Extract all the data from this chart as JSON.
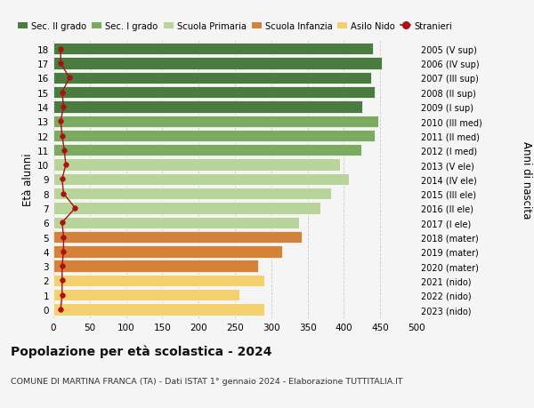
{
  "ages": [
    18,
    17,
    16,
    15,
    14,
    13,
    12,
    11,
    10,
    9,
    8,
    7,
    6,
    5,
    4,
    3,
    2,
    1,
    0
  ],
  "right_labels": [
    "2005 (V sup)",
    "2006 (IV sup)",
    "2007 (III sup)",
    "2008 (II sup)",
    "2009 (I sup)",
    "2010 (III med)",
    "2011 (II med)",
    "2012 (I med)",
    "2013 (V ele)",
    "2014 (IV ele)",
    "2015 (III ele)",
    "2016 (II ele)",
    "2017 (I ele)",
    "2018 (mater)",
    "2019 (mater)",
    "2020 (mater)",
    "2021 (nido)",
    "2022 (nido)",
    "2023 (nido)"
  ],
  "bar_values": [
    440,
    452,
    438,
    443,
    425,
    447,
    443,
    424,
    394,
    407,
    382,
    368,
    338,
    342,
    315,
    282,
    290,
    256,
    290
  ],
  "stranieri_values": [
    10,
    10,
    22,
    12,
    14,
    10,
    12,
    15,
    17,
    12,
    14,
    30,
    12,
    14,
    14,
    12,
    12,
    12,
    10
  ],
  "bar_colors": [
    "#4a7c3f",
    "#4a7c3f",
    "#4a7c3f",
    "#4a7c3f",
    "#4a7c3f",
    "#7aab5e",
    "#7aab5e",
    "#7aab5e",
    "#b8d49a",
    "#b8d49a",
    "#b8d49a",
    "#b8d49a",
    "#b8d49a",
    "#d4813a",
    "#d4813a",
    "#d4813a",
    "#f5d06e",
    "#f5d06e",
    "#f5d06e"
  ],
  "legend_colors": {
    "Sec. II grado": "#4a7c3f",
    "Sec. I grado": "#7aab5e",
    "Scuola Primaria": "#b8d49a",
    "Scuola Infanzia": "#d4813a",
    "Asilo Nido": "#f5d06e",
    "Stranieri": "#aa1111"
  },
  "title": "Popolazione per età scolastica - 2024",
  "subtitle": "COMUNE DI MARTINA FRANCA (TA) - Dati ISTAT 1° gennaio 2024 - Elaborazione TUTTITALIA.IT",
  "ylabel": "Età alunni",
  "right_ylabel": "Anni di nascita",
  "xlim": [
    0,
    500
  ],
  "xticks": [
    0,
    50,
    100,
    150,
    200,
    250,
    300,
    350,
    400,
    450,
    500
  ],
  "bg_color": "#f5f5f5",
  "bar_height": 0.82,
  "grid_color": "#cccccc"
}
